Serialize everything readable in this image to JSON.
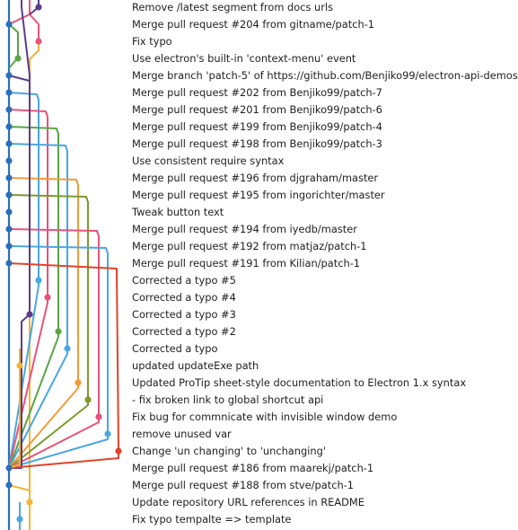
{
  "colors": {
    "blue": "#2c6fb7",
    "yellow": "#f5b335",
    "purple": "#5a3d8a",
    "pink": "#e8537a",
    "green": "#5aa446",
    "lightblue": "#4aa7e0",
    "olive": "#7b9a2c",
    "orange": "#f29b38",
    "red": "#e0442b"
  },
  "commits": [
    {
      "message": "Remove /latest segment from docs urls"
    },
    {
      "message": "Merge pull request #204 from gitname/patch-1"
    },
    {
      "message": "Fix typo"
    },
    {
      "message": "Use electron's built-in 'context-menu' event"
    },
    {
      "message": "Merge branch 'patch-5' of https://github.com/Benjiko99/electron-api-demos"
    },
    {
      "message": "Merge pull request #202 from Benjiko99/patch-7"
    },
    {
      "message": "Merge pull request #201 from Benjiko99/patch-6"
    },
    {
      "message": "Merge pull request #199 from Benjiko99/patch-4"
    },
    {
      "message": "Merge pull request #198 from Benjiko99/patch-3"
    },
    {
      "message": "Use consistent require syntax"
    },
    {
      "message": "Merge pull request #196 from djgraham/master"
    },
    {
      "message": "Merge pull request #195 from ingorichter/master"
    },
    {
      "message": " Tweak button text"
    },
    {
      "message": "Merge pull request #194 from iyedb/master"
    },
    {
      "message": "Merge pull request #192 from matjaz/patch-1"
    },
    {
      "message": "Merge pull request #191 from Kilian/patch-1"
    },
    {
      "message": "Corrected a typo #5"
    },
    {
      "message": "Corrected a typo #4"
    },
    {
      "message": "Corrected a typo #3"
    },
    {
      "message": "Corrected a typo #2"
    },
    {
      "message": "Corrected a typo"
    },
    {
      "message": "updated updateExe path"
    },
    {
      "message": "Updated ProTip sheet-style documentation to Electron 1.x syntax"
    },
    {
      "message": "- fix broken link to global shortcut api"
    },
    {
      "message": "Fix bug for commnicate with invisible window demo"
    },
    {
      "message": "remove unused var"
    },
    {
      "message": "Change 'un changing' to 'unchanging'"
    },
    {
      "message": "Merge pull request #186 from maarekj/patch-1"
    },
    {
      "message": "Merge pull request #188 from stve/patch-1"
    },
    {
      "message": "Update repository URL references in README"
    },
    {
      "message": "Fix typo tempalte => template"
    }
  ]
}
